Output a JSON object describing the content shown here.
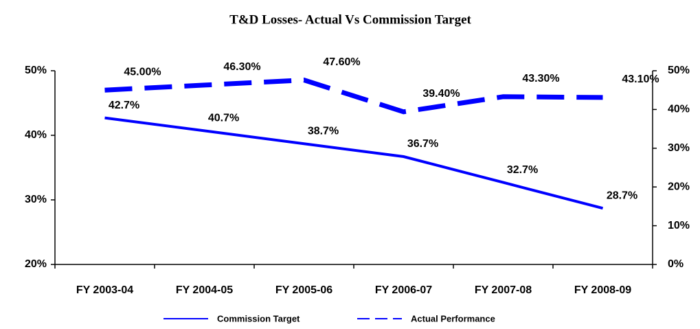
{
  "chart_data": {
    "type": "line",
    "title": "T&D Losses-  Actual Vs  Commission Target",
    "categories": [
      "FY 2003-04",
      "FY 2004-05",
      "FY 2005-06",
      "FY 2006-07",
      "FY 2007-08",
      "FY 2008-09"
    ],
    "series": [
      {
        "name": "Commission Target",
        "color": "#0000ff",
        "style": "solid",
        "values": [
          42.7,
          40.7,
          38.7,
          36.7,
          32.7,
          28.7
        ],
        "value_labels": [
          "42.7%",
          "40.7%",
          "38.7%",
          "36.7%",
          "32.7%",
          "28.7%"
        ]
      },
      {
        "name": "Actual Performance",
        "color": "#0000ff",
        "style": "dashed",
        "axis": "y2",
        "values": [
          45.0,
          46.3,
          47.6,
          39.4,
          43.3,
          43.1
        ],
        "value_labels": [
          "45.00%",
          "46.30%",
          "47.60%",
          "39.40%",
          "43.30%",
          "43.10%"
        ]
      }
    ],
    "ylim": [
      20,
      50
    ],
    "yticks": [
      {
        "value": 20,
        "label": "20%"
      },
      {
        "value": 30,
        "label": "30%"
      },
      {
        "value": 40,
        "label": "40%"
      },
      {
        "value": 50,
        "label": "50%"
      }
    ],
    "y2lim": [
      0,
      50
    ],
    "y2ticks": [
      {
        "value": 0,
        "label": "0%"
      },
      {
        "value": 10,
        "label": "10%"
      },
      {
        "value": 20,
        "label": "20%"
      },
      {
        "value": 30,
        "label": "30%"
      },
      {
        "value": 40,
        "label": "40%"
      },
      {
        "value": 50,
        "label": "50%"
      }
    ],
    "grid": false,
    "legend": "bottom"
  }
}
